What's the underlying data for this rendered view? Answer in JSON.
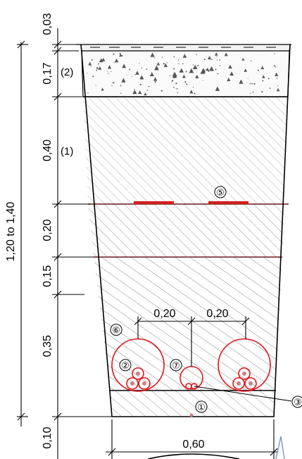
{
  "dimensions": {
    "total_depth": "1,20 to 1,40",
    "layers": [
      "0,03",
      "0,17",
      "0,40",
      "0,20",
      "0,15",
      "0,35",
      "0,10"
    ],
    "spacing_left": "0,20",
    "spacing_right": "0,20",
    "bottom_width": "0,60"
  },
  "layer_labels": {
    "pavement": "(2)",
    "base": "(1)"
  },
  "callouts": {
    "c1": "①",
    "c2": "②",
    "c3": "③",
    "c5": "⑤",
    "c6": "⑥",
    "c7": "⑦"
  },
  "colors": {
    "line": "#000000",
    "conduit": "#e0161b",
    "layer_line": "#6b1a1a",
    "tape": "#d0201a",
    "asphalt": "#f3f3f3"
  }
}
